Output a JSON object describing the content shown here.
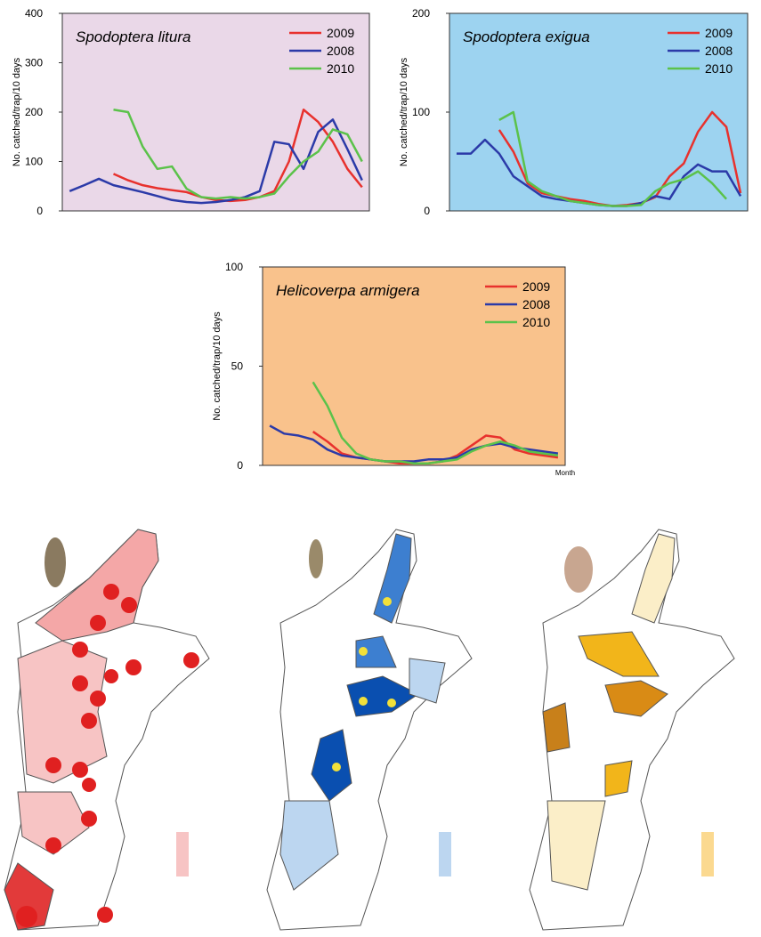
{
  "chart_data": [
    {
      "type": "line",
      "title": "Spodoptera litura",
      "ylabel": "No. catched/trap/10 days",
      "background": "#ead8e8",
      "categories": [
        null,
        null,
        null,
        null,
        null,
        null,
        null,
        null,
        null,
        null,
        null,
        null,
        null,
        null,
        null,
        null,
        null,
        null,
        null,
        null,
        null
      ],
      "ylim": [
        0,
        400
      ],
      "yticks": [
        0,
        100,
        200,
        300,
        400
      ],
      "legend": "upper right",
      "series": [
        {
          "name": "2009",
          "color": "#e8312d",
          "values": [
            null,
            null,
            null,
            75,
            62,
            52,
            46,
            42,
            38,
            28,
            22,
            20,
            22,
            28,
            40,
            100,
            205,
            180,
            140,
            85,
            48
          ]
        },
        {
          "name": "2008",
          "color": "#2b3aa8",
          "values": [
            40,
            52,
            65,
            52,
            45,
            38,
            30,
            22,
            18,
            16,
            18,
            22,
            28,
            40,
            140,
            135,
            85,
            160,
            185,
            125,
            62
          ]
        },
        {
          "name": "2010",
          "color": "#5bc24a",
          "values": [
            null,
            null,
            null,
            205,
            200,
            130,
            85,
            90,
            45,
            28,
            25,
            28,
            25,
            28,
            35,
            70,
            100,
            120,
            165,
            155,
            100
          ]
        }
      ]
    },
    {
      "type": "line",
      "title": "Spodoptera exigua",
      "ylabel": "No. catched/trap/10 days",
      "background": "#9dd3f0",
      "categories": [
        null,
        null,
        null,
        null,
        null,
        null,
        null,
        null,
        null,
        null,
        null,
        null,
        null,
        null,
        null,
        null,
        null,
        null,
        null,
        null,
        null
      ],
      "ylim": [
        0,
        200
      ],
      "yticks": [
        0,
        100,
        200
      ],
      "legend": "upper right",
      "series": [
        {
          "name": "2009",
          "color": "#e8312d",
          "values": [
            null,
            null,
            null,
            82,
            60,
            28,
            18,
            15,
            12,
            10,
            7,
            5,
            6,
            8,
            14,
            35,
            48,
            80,
            100,
            85,
            18
          ]
        },
        {
          "name": "2008",
          "color": "#2b3aa8",
          "values": [
            58,
            58,
            72,
            58,
            35,
            25,
            15,
            12,
            10,
            8,
            6,
            5,
            5,
            8,
            15,
            12,
            35,
            47,
            40,
            40,
            15
          ]
        },
        {
          "name": "2010",
          "color": "#5bc24a",
          "values": [
            null,
            null,
            null,
            92,
            100,
            30,
            20,
            15,
            10,
            8,
            6,
            5,
            5,
            6,
            20,
            28,
            32,
            40,
            28,
            12,
            null
          ]
        }
      ]
    },
    {
      "type": "line",
      "title": "Helicoverpa armigera",
      "ylabel": "No. catched/trap/10 days",
      "xlabel": "Month",
      "background": "#f9c28c",
      "categories": [
        null,
        null,
        null,
        null,
        null,
        null,
        null,
        null,
        null,
        null,
        null,
        null,
        null,
        null,
        null,
        null,
        null,
        null,
        null,
        null,
        null
      ],
      "ylim": [
        0,
        100
      ],
      "yticks": [
        0,
        50,
        100
      ],
      "legend": "upper right",
      "series": [
        {
          "name": "2009",
          "color": "#e8312d",
          "values": [
            null,
            null,
            null,
            17,
            12,
            6,
            4,
            3,
            2,
            1,
            1,
            1,
            2,
            5,
            10,
            15,
            14,
            8,
            6,
            5,
            4
          ]
        },
        {
          "name": "2008",
          "color": "#2b3aa8",
          "values": [
            20,
            16,
            15,
            13,
            8,
            5,
            4,
            3,
            2,
            2,
            2,
            3,
            3,
            4,
            8,
            10,
            11,
            9,
            8,
            7,
            6
          ]
        },
        {
          "name": "2010",
          "color": "#5bc24a",
          "values": [
            null,
            null,
            null,
            42,
            30,
            14,
            6,
            3,
            2,
            2,
            1,
            1,
            2,
            3,
            7,
            10,
            12,
            10,
            7,
            6,
            5
          ]
        }
      ]
    }
  ]
}
